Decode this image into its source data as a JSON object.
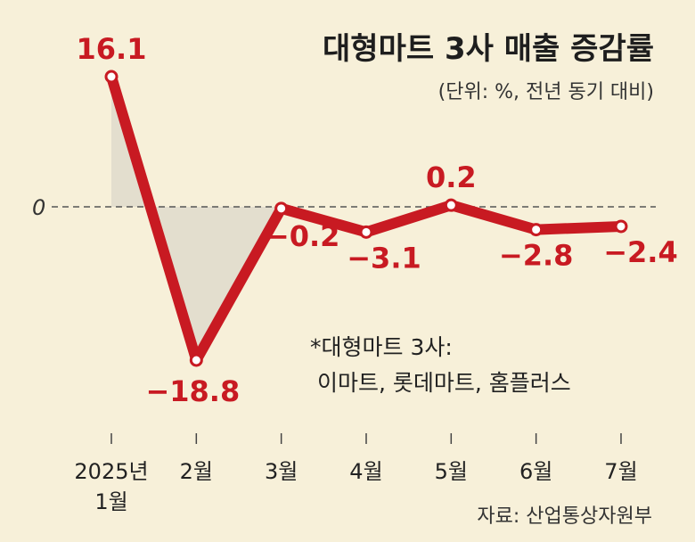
{
  "chart_data": {
    "type": "line",
    "title": "대형마트 3사 매출 증감률",
    "subtitle": "(단위: %, 전년 동기 대비)",
    "categories": [
      "2025년\n1월",
      "2월",
      "3월",
      "4월",
      "5월",
      "6월",
      "7월"
    ],
    "values": [
      16.1,
      -18.8,
      -0.2,
      -3.1,
      0.2,
      -2.8,
      -2.4
    ],
    "data_labels": [
      "16.1",
      "−18.8",
      "−0.2",
      "−3.1",
      "0.2",
      "−2.8",
      "−2.4"
    ],
    "baseline_label": "0",
    "ylim": [
      -18.8,
      16.1
    ],
    "grid": false,
    "legend": "none",
    "colors": {
      "line": "#c81a22",
      "fill": "#e3dece",
      "background": "#f7f0d9",
      "baseline": "#555555"
    }
  },
  "note": {
    "line1": "*대형마트 3사:",
    "line2": "이마트, 롯데마트, 홈플러스"
  },
  "source": "자료: 산업통상자원부"
}
